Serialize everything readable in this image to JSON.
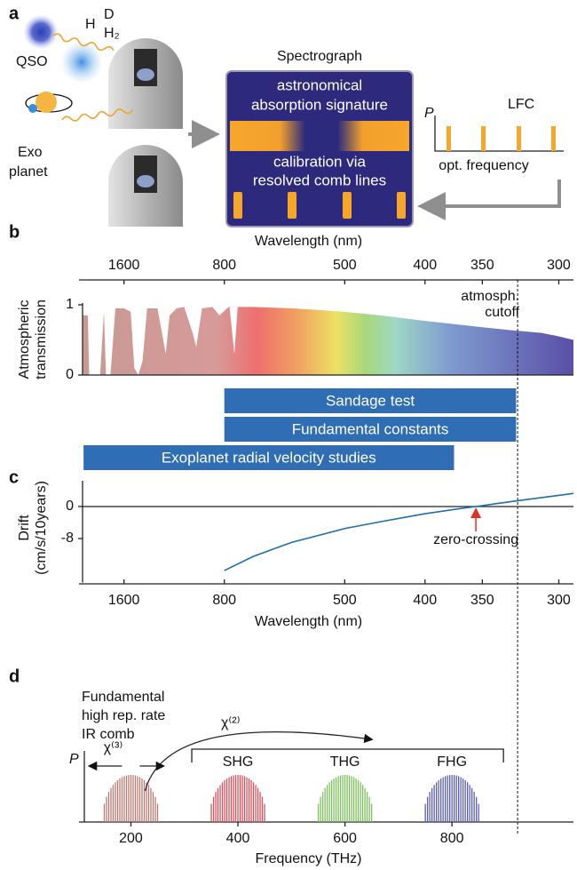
{
  "panel_a": {
    "label": "a",
    "h": "H",
    "d": "D",
    "h2": "H₂",
    "qso": "QSO",
    "exoplanet": [
      "Exo",
      "planet"
    ],
    "spectrograph": "Spectrograph",
    "absorption": [
      "astronomical",
      "absorption signature"
    ],
    "calibration": [
      "calibration via",
      "resolved comb lines"
    ],
    "lfc_axis": "P",
    "lfc": "LFC",
    "lfc_xlabel": "opt. frequency"
  },
  "chart_data": [
    {
      "type": "area",
      "label": "b",
      "xlabel": "Wavelength (nm)",
      "ylabel": [
        "Atmospheric",
        "transmission"
      ],
      "xscale": "reciprocal",
      "xlim": [
        2900,
        292
      ],
      "xticks": [
        1600,
        800,
        500,
        400,
        350,
        300
      ],
      "ylim": [
        0,
        1
      ],
      "yticks": [
        0,
        1
      ],
      "x": [
        2700,
        2500,
        2450,
        2100,
        2000,
        1950,
        1850,
        1750,
        1600,
        1500,
        1450,
        1400,
        1350,
        1300,
        1200,
        1150,
        1130,
        1100,
        1050,
        1000,
        950,
        930,
        900,
        850,
        820,
        780,
        762,
        750,
        700,
        650,
        600,
        550,
        500,
        450,
        400,
        370,
        350,
        330,
        310,
        300,
        292
      ],
      "values": [
        0.85,
        0.85,
        0,
        0,
        0.9,
        0,
        0,
        0.95,
        0.95,
        0.9,
        0.1,
        0,
        0.2,
        0.95,
        0.95,
        0.5,
        0.3,
        0.85,
        0.95,
        0.97,
        0.6,
        0.4,
        0.95,
        0.97,
        0.85,
        0.98,
        0.3,
        0.97,
        0.97,
        0.96,
        0.95,
        0.93,
        0.9,
        0.85,
        0.77,
        0.72,
        0.68,
        0.64,
        0.6,
        0.55,
        0.5
      ],
      "annotation": [
        "atmosph.",
        "cutoff"
      ],
      "cutoff": 325,
      "range_color": "#2f6db5",
      "ranges": [
        {
          "label": "Sandage test",
          "start": 800,
          "end": 326
        },
        {
          "label": "Fundamental constants",
          "start": 800,
          "end": 326
        },
        {
          "label": "Exoplanet radial velocity studies",
          "start": 2680,
          "end": 373
        }
      ]
    },
    {
      "type": "line",
      "label": "c",
      "xlabel": "Wavelength (nm)",
      "ylabel": [
        "Drift",
        "(cm/s/10years)"
      ],
      "xscale": "reciprocal",
      "xlim": [
        2900,
        292
      ],
      "xticks": [
        1600,
        800,
        500,
        400,
        350,
        300
      ],
      "ylim": [
        -19,
        6
      ],
      "yticks": [
        0,
        -8
      ],
      "zero_line": true,
      "color": "#1f6ea8",
      "x": [
        800,
        700,
        600,
        500,
        450,
        400,
        370,
        355,
        340,
        320,
        300,
        292
      ],
      "values": [
        -16,
        -12.5,
        -9,
        -5.5,
        -3.8,
        -1.8,
        -0.6,
        0,
        0.7,
        1.7,
        2.8,
        3.3
      ],
      "annotation": "zero-crossing",
      "annotation_x": 355
    },
    {
      "type": "comb",
      "label": "d",
      "xlabel": "Frequency (THz)",
      "ylabel": "P",
      "xlim": [
        103,
        1027
      ],
      "xticks": [
        200,
        400,
        600,
        800
      ],
      "x": [
        200,
        400,
        600,
        800
      ],
      "names": [
        null,
        "SHG",
        "THG",
        "FHG"
      ],
      "colors": [
        "#b87a72",
        "#d8505a",
        "#7cc15a",
        "#5b5fb3"
      ],
      "fundamental": [
        "Fundamental",
        "high rep. rate",
        "IR comb"
      ],
      "chi2": "χ⁽²⁾",
      "chi3": "χ⁽³⁾"
    }
  ]
}
